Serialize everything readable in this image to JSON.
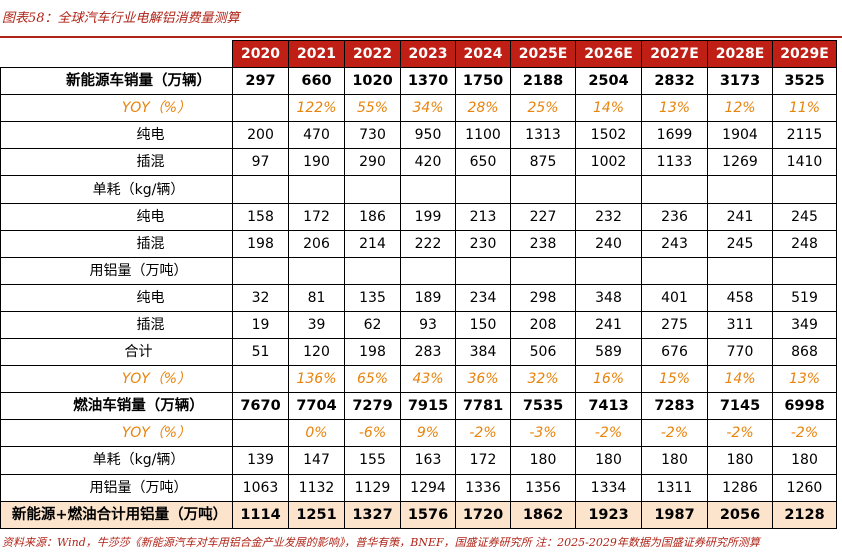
{
  "title": "图表58：全球汽车行业电解铝消费量测算",
  "columns": [
    "2020",
    "2021",
    "2022",
    "2023",
    "2024",
    "2025E",
    "2026E",
    "2027E",
    "2028E",
    "2029E"
  ],
  "rows": [
    {
      "type": "main",
      "label": "新能源车销量（万辆）",
      "values": [
        "297",
        "660",
        "1020",
        "1370",
        "1750",
        "2188",
        "2504",
        "2832",
        "3173",
        "3525"
      ]
    },
    {
      "type": "yoy",
      "label": "YOY（%）",
      "values": [
        "",
        "122%",
        "55%",
        "34%",
        "28%",
        "25%",
        "14%",
        "13%",
        "12%",
        "11%"
      ]
    },
    {
      "type": "i2",
      "label": "纯电",
      "values": [
        "200",
        "470",
        "730",
        "950",
        "1100",
        "1313",
        "1502",
        "1699",
        "1904",
        "2115"
      ]
    },
    {
      "type": "i2",
      "label": "插混",
      "values": [
        "97",
        "190",
        "290",
        "420",
        "650",
        "875",
        "1002",
        "1133",
        "1269",
        "1410"
      ]
    },
    {
      "type": "i1",
      "label": "单耗（kg/辆）",
      "values": [
        "",
        "",
        "",
        "",
        "",
        "",
        "",
        "",
        "",
        ""
      ]
    },
    {
      "type": "i2",
      "label": "纯电",
      "values": [
        "158",
        "172",
        "186",
        "199",
        "213",
        "227",
        "232",
        "236",
        "241",
        "245"
      ]
    },
    {
      "type": "i2",
      "label": "插混",
      "values": [
        "198",
        "206",
        "214",
        "222",
        "230",
        "238",
        "240",
        "243",
        "245",
        "248"
      ]
    },
    {
      "type": "i1",
      "label": "用铝量（万吨）",
      "values": [
        "",
        "",
        "",
        "",
        "",
        "",
        "",
        "",
        "",
        ""
      ]
    },
    {
      "type": "i2",
      "label": "纯电",
      "values": [
        "32",
        "81",
        "135",
        "189",
        "234",
        "298",
        "348",
        "401",
        "458",
        "519"
      ]
    },
    {
      "type": "i2",
      "label": "插混",
      "values": [
        "19",
        "39",
        "62",
        "93",
        "150",
        "208",
        "241",
        "275",
        "311",
        "349"
      ]
    },
    {
      "type": "i1b",
      "label": "合计",
      "values": [
        "51",
        "120",
        "198",
        "283",
        "384",
        "506",
        "589",
        "676",
        "770",
        "868"
      ]
    },
    {
      "type": "yoy",
      "label": "YOY（%）",
      "values": [
        "",
        "136%",
        "65%",
        "43%",
        "36%",
        "32%",
        "16%",
        "15%",
        "14%",
        "13%"
      ]
    },
    {
      "type": "main",
      "label": "燃油车销量（万辆）",
      "values": [
        "7670",
        "7704",
        "7279",
        "7915",
        "7781",
        "7535",
        "7413",
        "7283",
        "7145",
        "6998"
      ]
    },
    {
      "type": "yoy",
      "label": "YOY（%）",
      "values": [
        "",
        "0%",
        "-6%",
        "9%",
        "-2%",
        "-3%",
        "-2%",
        "-2%",
        "-2%",
        "-2%"
      ]
    },
    {
      "type": "i1",
      "label": "单耗（kg/辆）",
      "values": [
        "139",
        "147",
        "155",
        "163",
        "172",
        "180",
        "180",
        "180",
        "180",
        "180"
      ]
    },
    {
      "type": "i1",
      "label": "用铝量（万吨）",
      "values": [
        "1063",
        "1132",
        "1129",
        "1294",
        "1336",
        "1356",
        "1334",
        "1311",
        "1286",
        "1260"
      ]
    },
    {
      "type": "total",
      "label": "新能源+燃油合计用铝量（万吨）",
      "values": [
        "1114",
        "1251",
        "1327",
        "1576",
        "1720",
        "1862",
        "1923",
        "1987",
        "2056",
        "2128"
      ]
    }
  ],
  "source": "资料来源：Wind，牛莎莎《新能源汽车对车用铝合金产业发展的影响》，普华有策，BNEF，国盛证券研究所 注：2025-2029年数据为国盛证券研究所测算"
}
